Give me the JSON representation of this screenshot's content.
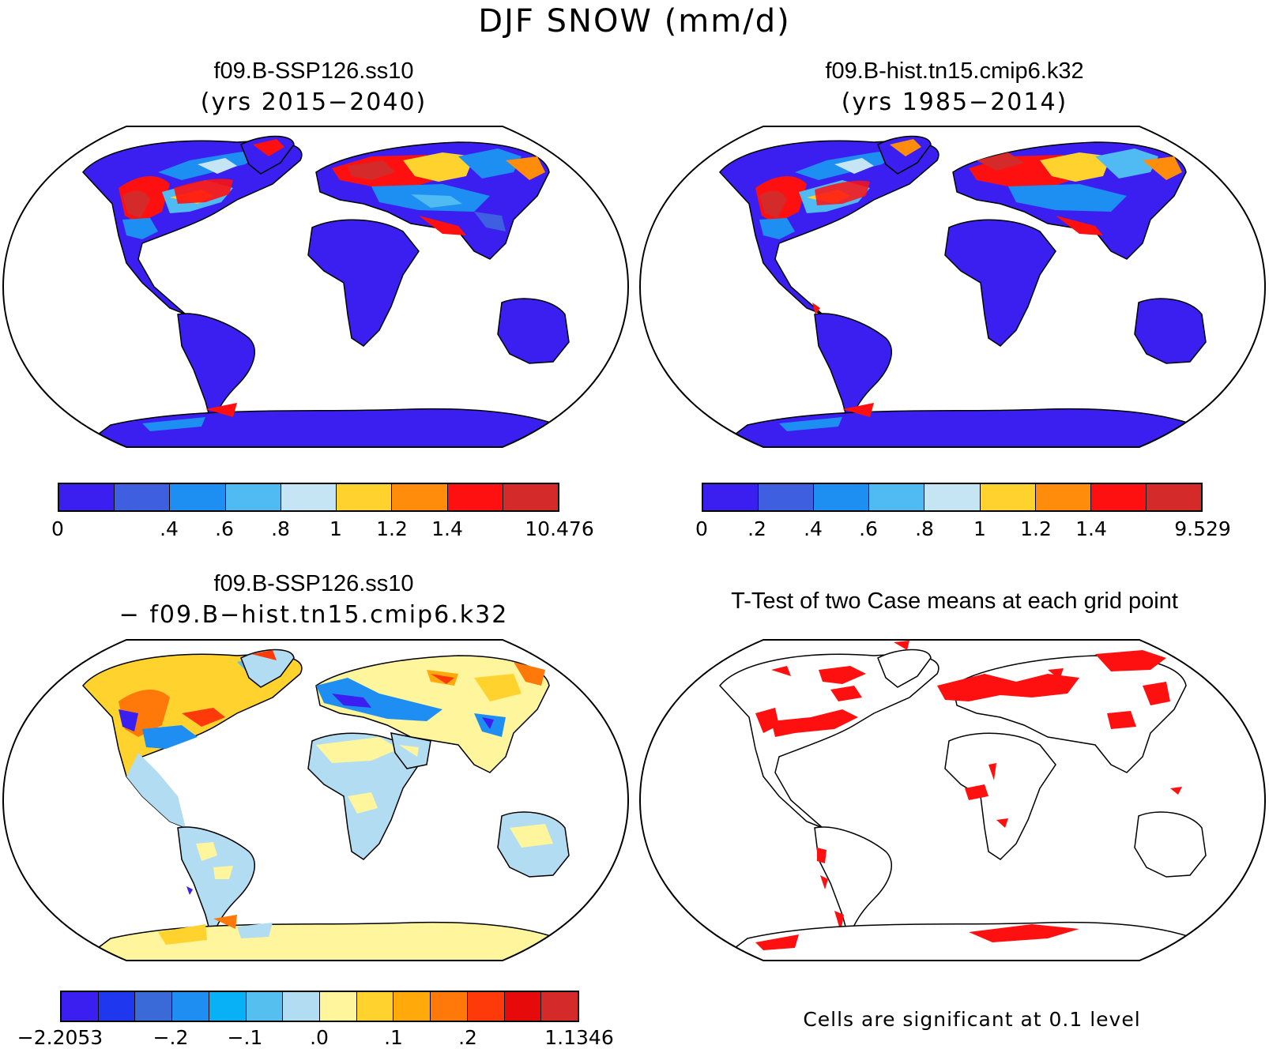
{
  "title": "DJF SNOW (mm/d)",
  "panels": {
    "top_left": {
      "title": "f09.B-SSP126.ss10",
      "subtitle": "(yrs 2015−2040)"
    },
    "top_right": {
      "title": "f09.B-hist.tn15.cmip6.k32",
      "subtitle": "(yrs 1985−2014)"
    },
    "bottom_left": {
      "title": "f09.B-SSP126.ss10",
      "subtitle": "− f09.B−hist.tn15.cmip6.k32"
    },
    "bottom_right": {
      "title": "T-Test of two Case means at each grid point",
      "note": "Cells are significant at 0.1 level"
    }
  },
  "colorbars": {
    "top_left": {
      "colors": [
        "#3b1ff0",
        "#3d5fe0",
        "#1e8ff2",
        "#50bbf2",
        "#c5e5f5",
        "#ffd22e",
        "#ff8c0a",
        "#ff1010",
        "#d42a2a"
      ],
      "labels": [
        "0",
        ".4",
        ".6",
        ".8",
        "1",
        "1.2",
        "1.4",
        "10.476"
      ]
    },
    "top_right": {
      "colors": [
        "#3b1ff0",
        "#3d5fe0",
        "#1e8ff2",
        "#50bbf2",
        "#c5e5f5",
        "#ffd22e",
        "#ff8c0a",
        "#ff1010",
        "#d42a2a"
      ],
      "labels": [
        "0",
        ".2",
        ".4",
        ".6",
        ".8",
        "1",
        "1.2",
        "1.4",
        "9.529"
      ]
    },
    "bottom_left": {
      "colors": [
        "#3b1ff0",
        "#1f37ee",
        "#3a6ad8",
        "#1f8ef3",
        "#08b0f5",
        "#55bff0",
        "#b2dcf2",
        "#fff59c",
        "#ffd22e",
        "#ffaa0a",
        "#ff780a",
        "#ff3a0a",
        "#e60a0a",
        "#d42a2a"
      ],
      "labels": [
        "−2.2053",
        "−.2",
        "−.1",
        ".0",
        ".1",
        ".2",
        "1.1346"
      ]
    }
  },
  "colors": {
    "land_low": "#3b1ff0",
    "diff_base": "#b2dcf2",
    "significant": "#ff1010"
  }
}
